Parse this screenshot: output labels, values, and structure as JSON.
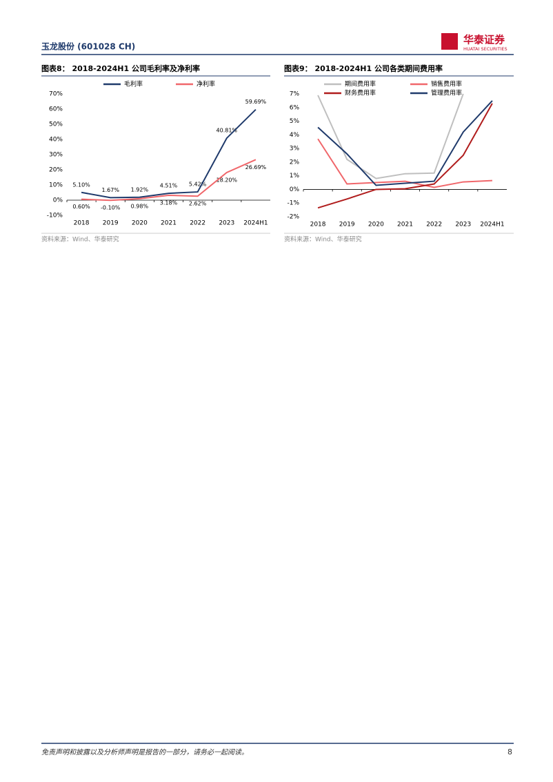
{
  "header": {
    "title": "玉龙股份 (601028 CH)",
    "logo_cn": "华泰证券",
    "logo_en": "HUATAI SECURITIES"
  },
  "chart_data": [
    {
      "type": "line",
      "title": "图表8：  2018-2024H1 公司毛利率及净利率",
      "categories": [
        "2018",
        "2019",
        "2020",
        "2021",
        "2022",
        "2023",
        "2024H1"
      ],
      "series": [
        {
          "name": "毛利率",
          "color": "#1f3a6b",
          "values": [
            5.1,
            1.67,
            1.92,
            4.51,
            5.42,
            40.81,
            59.69
          ],
          "value_labels": [
            "5.10%",
            "1.67%",
            "1.92%",
            "4.51%",
            "5.42%",
            "40.81%",
            "59.69%"
          ]
        },
        {
          "name": "净利率",
          "color": "#f0666a",
          "values": [
            0.6,
            -0.1,
            0.98,
            3.18,
            2.62,
            18.2,
            26.69
          ],
          "value_labels": [
            "0.60%",
            "-0.10%",
            "0.98%",
            "3.18%",
            "2.62%",
            "18.20%",
            "26.69%"
          ]
        }
      ],
      "ylim": [
        -10,
        70
      ],
      "yticks": [
        {
          "value": -10,
          "label": "-10%"
        },
        {
          "value": 0,
          "label": "0%"
        },
        {
          "value": 10,
          "label": "10%"
        },
        {
          "value": 20,
          "label": "20%"
        },
        {
          "value": 30,
          "label": "30%"
        },
        {
          "value": 40,
          "label": "40%"
        },
        {
          "value": 50,
          "label": "50%"
        },
        {
          "value": 60,
          "label": "60%"
        },
        {
          "value": 70,
          "label": "70%"
        }
      ],
      "source": "资料来源：Wind、华泰研究"
    },
    {
      "type": "line",
      "title": "图表9：  2018-2024H1 公司各类期间费用率",
      "categories": [
        "2018",
        "2019",
        "2020",
        "2021",
        "2022",
        "2023",
        "2024H1"
      ],
      "series": [
        {
          "name": "期间费用率",
          "color": "#bfbfbf",
          "values": [
            6.9,
            2.2,
            0.8,
            1.15,
            1.2,
            7.0,
            null
          ]
        },
        {
          "name": "销售费用率",
          "color": "#f0666a",
          "values": [
            3.7,
            0.4,
            0.5,
            0.6,
            0.15,
            0.55,
            0.65
          ]
        },
        {
          "name": "财务费用率",
          "color": "#b01c1c",
          "values": [
            -1.35,
            -0.7,
            0.0,
            0.05,
            0.4,
            2.5,
            6.3
          ]
        },
        {
          "name": "管理费用率",
          "color": "#1f3a6b",
          "values": [
            4.55,
            2.6,
            0.3,
            0.45,
            0.6,
            4.2,
            6.5
          ]
        }
      ],
      "ylim": [
        -2,
        7
      ],
      "yticks": [
        {
          "value": -2,
          "label": "-2%"
        },
        {
          "value": -1,
          "label": "-1%"
        },
        {
          "value": 0,
          "label": "0%"
        },
        {
          "value": 1,
          "label": "1%"
        },
        {
          "value": 2,
          "label": "2%"
        },
        {
          "value": 3,
          "label": "3%"
        },
        {
          "value": 4,
          "label": "4%"
        },
        {
          "value": 5,
          "label": "5%"
        },
        {
          "value": 6,
          "label": "6%"
        },
        {
          "value": 7,
          "label": "7%"
        }
      ],
      "source": "资料来源：Wind、华泰研究"
    }
  ],
  "footer": {
    "disclaimer": "免责声明和披露以及分析师声明是报告的一部分，请务必一起阅读。",
    "page_number": "8"
  }
}
